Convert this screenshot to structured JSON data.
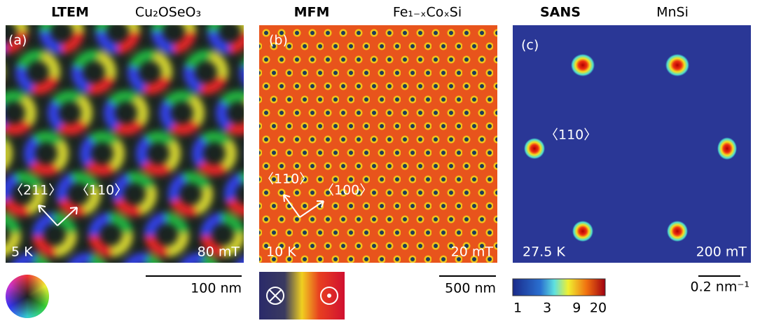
{
  "panels": [
    {
      "technique": "LTEM",
      "material": "Cu₂OSeO₃",
      "label": "(a)",
      "directions": [
        "〈211〉",
        "〈110〉"
      ],
      "temperature": "5 K",
      "field": "80 mT",
      "scale_bar": "100 nm"
    },
    {
      "technique": "MFM",
      "material": "Fe₁₋ₓCoₓSi",
      "label": "(b)",
      "directions": [
        "〈110〉",
        "〈100〉"
      ],
      "temperature": "10 K",
      "field": "20 mT",
      "scale_bar": "500 nm"
    },
    {
      "technique": "SANS",
      "material": "MnSi",
      "label": "(c)",
      "directions": [
        "〈110〉"
      ],
      "temperature": "27.5 K",
      "field": "200 mT",
      "scale_bar": "0.2 nm⁻¹",
      "colorbar_ticks": [
        1,
        3,
        9,
        20
      ]
    }
  ]
}
